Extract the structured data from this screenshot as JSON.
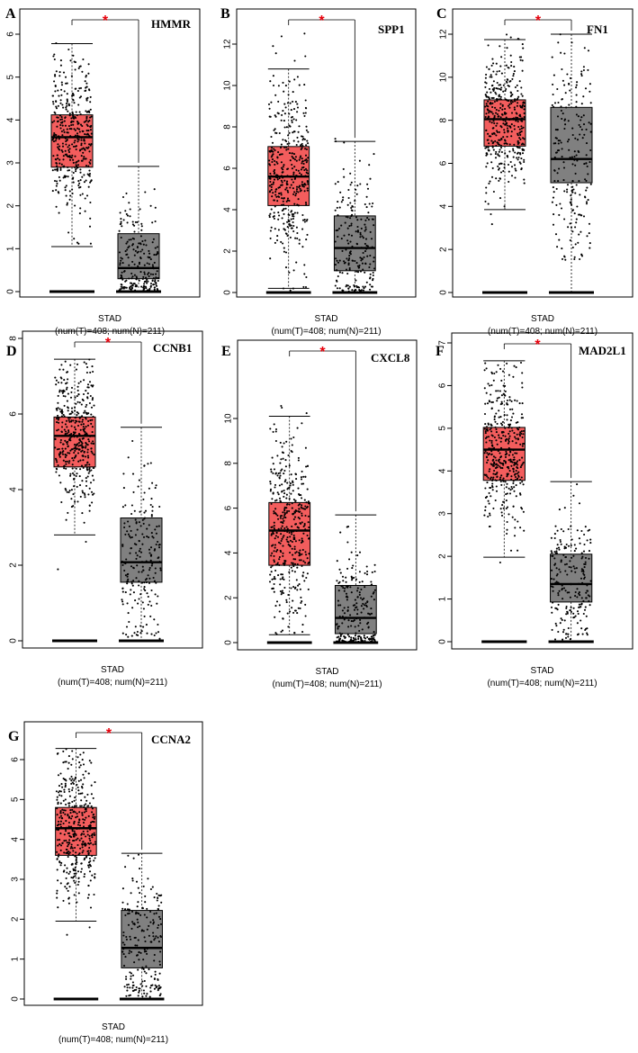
{
  "figure": {
    "title": ""
  },
  "colors": {
    "tumor": "#f35d5d",
    "normal": "#808080",
    "point": "#000000",
    "star": "#e8000b"
  },
  "chart_data": [
    {
      "type": "box",
      "panel": "A",
      "gene": "HMMR",
      "dataset": "STAD",
      "n_label": "(num(T)=408; num(N)=211)",
      "significance": "*",
      "yticks": [
        "0",
        "1",
        "2",
        "3",
        "4",
        "5",
        "6"
      ],
      "ylim": [
        0,
        6.3
      ],
      "groups": [
        {
          "name": "T",
          "count": 408,
          "whisker_low": 1.05,
          "q1": 2.9,
          "median": 3.6,
          "q3": 4.12,
          "whisker_high": 5.78,
          "max": 6.05,
          "min": 0.25
        },
        {
          "name": "N",
          "count": 211,
          "whisker_low": 0.05,
          "q1": 0.3,
          "median": 0.55,
          "q3": 1.35,
          "whisker_high": 2.92,
          "max": 3.4,
          "min": 0.02
        }
      ]
    },
    {
      "type": "box",
      "panel": "B",
      "gene": "SPP1",
      "dataset": "STAD",
      "n_label": "(num(T)=408; num(N)=211)",
      "significance": "*",
      "yticks": [
        "0",
        "2",
        "4",
        "6",
        "8",
        "10",
        "12"
      ],
      "ylim": [
        0,
        13.2
      ],
      "groups": [
        {
          "name": "T",
          "count": 408,
          "whisker_low": 0.2,
          "q1": 4.2,
          "median": 5.6,
          "q3": 7.05,
          "whisker_high": 10.8,
          "max": 12.6,
          "min": 0.05
        },
        {
          "name": "N",
          "count": 211,
          "whisker_low": 0.05,
          "q1": 1.05,
          "median": 2.15,
          "q3": 3.7,
          "whisker_high": 7.3,
          "max": 7.5,
          "min": 0.02
        }
      ]
    },
    {
      "type": "box",
      "panel": "C",
      "gene": "FN1",
      "dataset": "STAD",
      "n_label": "(num(T)=408; num(N)=211)",
      "significance": "*",
      "yticks": [
        "0",
        "2",
        "4",
        "6",
        "8",
        "10",
        "12"
      ],
      "ylim": [
        0,
        12.9
      ],
      "groups": [
        {
          "name": "T",
          "count": 408,
          "whisker_low": 3.85,
          "q1": 6.8,
          "median": 8.05,
          "q3": 8.95,
          "whisker_high": 11.75,
          "max": 12.0,
          "min": 2.9
        },
        {
          "name": "N",
          "count": 211,
          "whisker_low": 0.05,
          "q1": 5.1,
          "median": 6.2,
          "q3": 8.6,
          "whisker_high": 12.0,
          "max": 12.0,
          "min": 1.5
        }
      ]
    },
    {
      "type": "box",
      "panel": "D",
      "gene": "CCNB1",
      "dataset": "STAD",
      "n_label": "(num(T)=408; num(N)=211)",
      "significance": "*",
      "yticks": [
        "0",
        "2",
        "4",
        "6",
        "8"
      ],
      "ylim": [
        0,
        7.9
      ],
      "groups": [
        {
          "name": "T",
          "count": 408,
          "whisker_low": 2.8,
          "q1": 4.6,
          "median": 5.42,
          "q3": 5.92,
          "whisker_high": 7.45,
          "max": 7.45,
          "min": 1.8
        },
        {
          "name": "N",
          "count": 211,
          "whisker_low": 0.05,
          "q1": 1.55,
          "median": 2.08,
          "q3": 3.25,
          "whisker_high": 5.65,
          "max": 5.65,
          "min": 0.05
        }
      ]
    },
    {
      "type": "box",
      "panel": "E",
      "gene": "CXCL8",
      "dataset": "STAD",
      "n_label": "(num(T)=408; num(N)=211)",
      "significance": "*",
      "yticks": [
        "0",
        "2",
        "4",
        "6",
        "8",
        "10"
      ],
      "ylim": [
        0,
        11.3
      ],
      "groups": [
        {
          "name": "T",
          "count": 408,
          "whisker_low": 0.35,
          "q1": 3.45,
          "median": 5.0,
          "q3": 6.25,
          "whisker_high": 10.1,
          "max": 10.7,
          "min": 0.3
        },
        {
          "name": "N",
          "count": 211,
          "whisker_low": 0.05,
          "q1": 0.4,
          "median": 1.1,
          "q3": 2.55,
          "whisker_high": 5.7,
          "max": 6.55,
          "min": 0.02
        }
      ]
    },
    {
      "type": "box",
      "panel": "F",
      "gene": "MAD2L1",
      "dataset": "STAD",
      "n_label": "(num(T)=408; num(N)=211)",
      "significance": "*",
      "yticks": [
        "0",
        "1",
        "2",
        "3",
        "4",
        "5",
        "6",
        "7"
      ],
      "ylim": [
        0,
        7.0
      ],
      "groups": [
        {
          "name": "T",
          "count": 408,
          "whisker_low": 1.98,
          "q1": 3.78,
          "median": 4.5,
          "q3": 5.02,
          "whisker_high": 6.58,
          "max": 6.58,
          "min": 1.1
        },
        {
          "name": "N",
          "count": 211,
          "whisker_low": 0.05,
          "q1": 0.93,
          "median": 1.35,
          "q3": 2.05,
          "whisker_high": 3.75,
          "max": 3.75,
          "min": 0.05
        }
      ]
    },
    {
      "type": "box",
      "panel": "G",
      "gene": "CCNA2",
      "dataset": "STAD",
      "n_label": "(num(T)=408; num(N)=211)",
      "significance": "*",
      "yticks": [
        "0",
        "1",
        "2",
        "3",
        "4",
        "5",
        "6"
      ],
      "ylim": [
        0,
        6.6
      ],
      "groups": [
        {
          "name": "T",
          "count": 408,
          "whisker_low": 1.95,
          "q1": 3.6,
          "median": 4.28,
          "q3": 4.8,
          "whisker_high": 6.28,
          "max": 6.28,
          "min": 0.5
        },
        {
          "name": "N",
          "count": 211,
          "whisker_low": 0.05,
          "q1": 0.78,
          "median": 1.28,
          "q3": 2.22,
          "whisker_high": 3.65,
          "max": 3.65,
          "min": 0.05
        }
      ]
    }
  ]
}
